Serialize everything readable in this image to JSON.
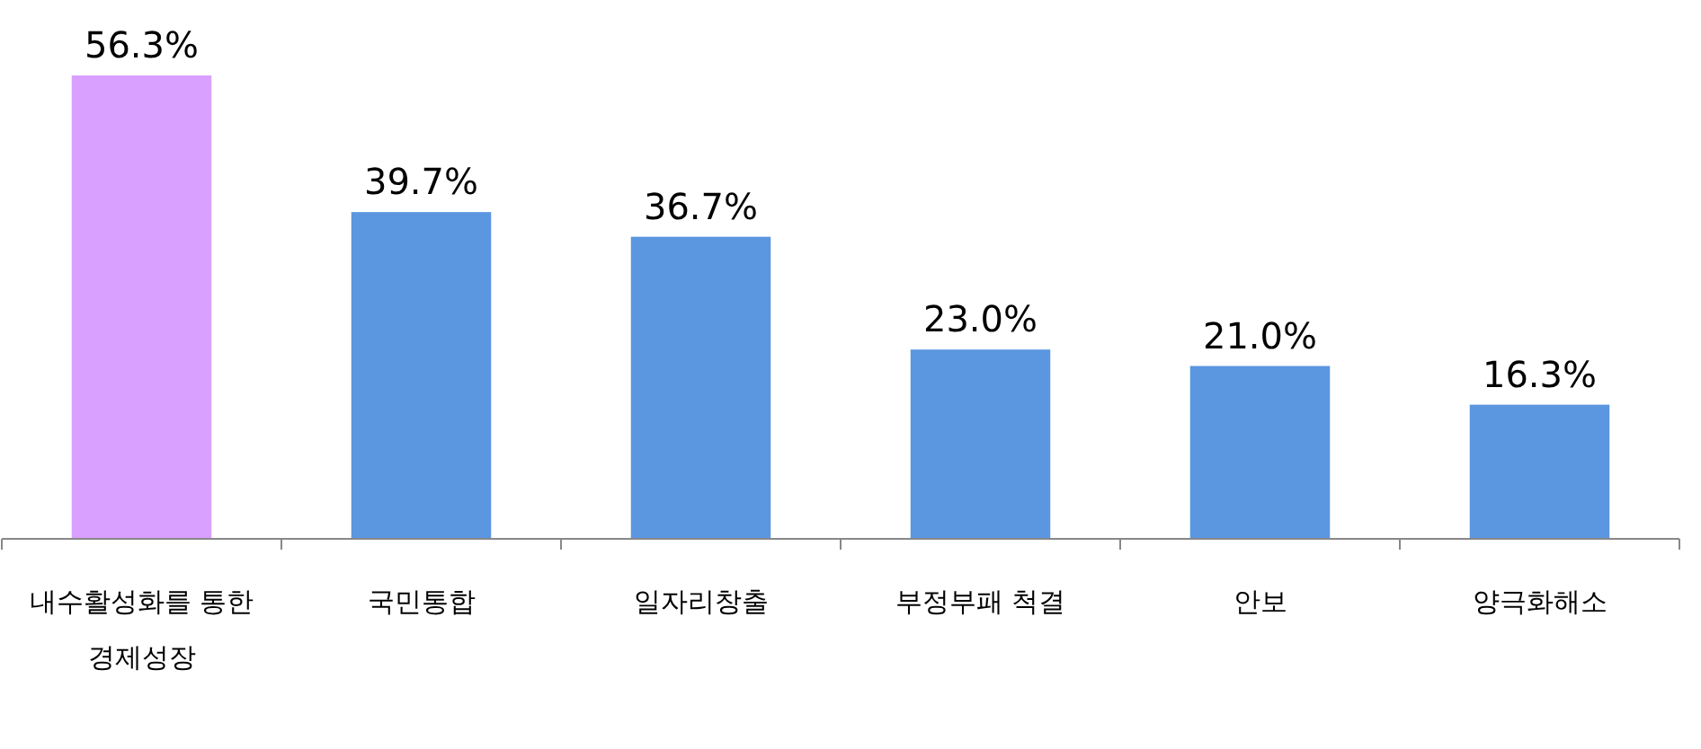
{
  "chart_data": {
    "type": "bar",
    "categories": [
      "내수활성화를 통한 경제성장",
      "국민통합",
      "일자리창출",
      "부정부패 척결",
      "안보",
      "양극화해소"
    ],
    "values": [
      56.3,
      39.7,
      36.7,
      23.0,
      21.0,
      16.3
    ],
    "value_labels": [
      "56.3%",
      "39.7%",
      "36.7%",
      "23.0%",
      "21.0%",
      "16.3%"
    ],
    "colors": [
      "#d9a0ff",
      "#5b96e0",
      "#5b96e0",
      "#5b96e0",
      "#5b96e0",
      "#5b96e0"
    ]
  }
}
